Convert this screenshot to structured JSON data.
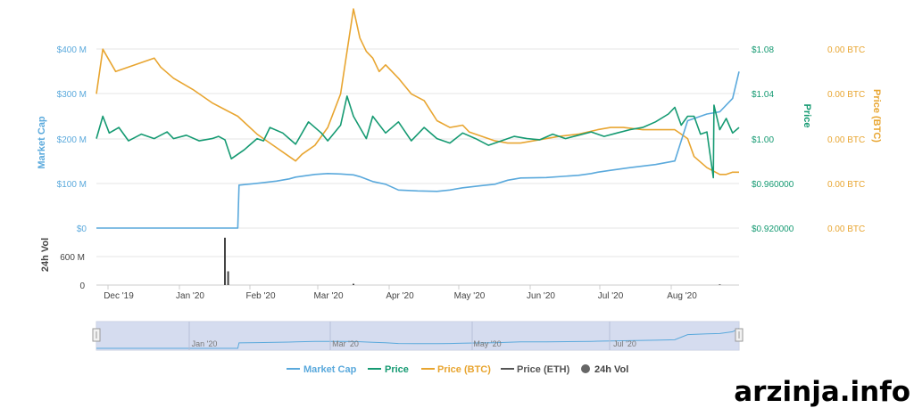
{
  "watermark": "arzinja.info",
  "colors": {
    "market_cap": "#5aa9dc",
    "price": "#159a72",
    "price_btc": "#e8a530",
    "price_eth": "#555555",
    "vol": "#444444",
    "grid": "#e6e6e6",
    "navigator_fill": "#cdd6ec",
    "navigator_border": "#9aa6c8"
  },
  "chart_data": {
    "type": "line",
    "x_tick_labels": [
      "Dec '19",
      "Jan '20",
      "Feb '20",
      "Mar '20",
      "Apr '20",
      "May '20",
      "Jun '20",
      "Jul '20",
      "Aug '20"
    ],
    "navigator_tick_labels": [
      "Jan '20",
      "Mar '20",
      "May '20",
      "Jul '20"
    ],
    "axes": {
      "market_cap": {
        "label": "Market Cap",
        "ticks": [
          "$0",
          "$100 M",
          "$200 M",
          "$300 M",
          "$400 M"
        ],
        "range": [
          0,
          500
        ]
      },
      "price": {
        "label": "Price",
        "ticks": [
          "$0.920000",
          "$0.960000",
          "$1.00",
          "$1.04",
          "$1.08"
        ],
        "range": [
          0.92,
          1.12
        ]
      },
      "price_btc": {
        "label": "Price (BTC)",
        "ticks": [
          "0.00 BTC",
          "0.00 BTC",
          "0.00 BTC",
          "0.00 BTC",
          "0.00 BTC"
        ]
      },
      "vol": {
        "label": "24h Vol",
        "ticks": [
          "0",
          "600 M"
        ],
        "range": [
          0,
          1200
        ]
      }
    },
    "legend": [
      "Market Cap",
      "Price",
      "Price (BTC)",
      "Price (ETH)",
      "24h Vol"
    ],
    "grid": true,
    "legend_position": "bottom",
    "series": [
      {
        "name": "Market Cap",
        "x": [
          0,
          0.0625,
          0.1,
          0.15,
          0.2,
          0.22,
          0.222,
          0.25,
          0.28,
          0.3,
          0.31,
          0.34,
          0.36,
          0.38,
          0.4,
          0.41,
          0.43,
          0.45,
          0.47,
          0.5,
          0.53,
          0.55,
          0.57,
          0.6,
          0.62,
          0.64,
          0.66,
          0.7,
          0.75,
          0.77,
          0.78,
          0.8,
          0.83,
          0.87,
          0.9,
          0.91,
          0.92,
          0.95,
          0.97,
          0.99,
          1.0
        ],
        "values": [
          0,
          0,
          0,
          0,
          0,
          0,
          96,
          100,
          105,
          110,
          114,
          120,
          122,
          121,
          119,
          115,
          104,
          98,
          85,
          83,
          82,
          85,
          90,
          95,
          98,
          107,
          112,
          113,
          118,
          122,
          125,
          129,
          135,
          142,
          150,
          195,
          240,
          255,
          260,
          290,
          350
        ]
      },
      {
        "name": "Price",
        "x": [
          0,
          0.01,
          0.02,
          0.035,
          0.05,
          0.07,
          0.09,
          0.11,
          0.12,
          0.14,
          0.16,
          0.18,
          0.19,
          0.2,
          0.21,
          0.23,
          0.24,
          0.25,
          0.26,
          0.27,
          0.29,
          0.3,
          0.31,
          0.33,
          0.35,
          0.36,
          0.38,
          0.39,
          0.4,
          0.41,
          0.42,
          0.43,
          0.45,
          0.47,
          0.49,
          0.51,
          0.53,
          0.55,
          0.57,
          0.59,
          0.61,
          0.63,
          0.65,
          0.67,
          0.69,
          0.71,
          0.73,
          0.75,
          0.77,
          0.79,
          0.81,
          0.83,
          0.85,
          0.87,
          0.89,
          0.9,
          0.91,
          0.92,
          0.93,
          0.94,
          0.95,
          0.96,
          0.961,
          0.97,
          0.98,
          0.99,
          1.0
        ],
        "values": [
          1.0,
          1.02,
          1.005,
          1.01,
          0.998,
          1.004,
          1.0,
          1.006,
          1.0,
          1.003,
          0.998,
          1.0,
          1.002,
          0.999,
          0.982,
          0.99,
          0.995,
          1.0,
          0.998,
          1.01,
          1.005,
          1.0,
          0.995,
          1.015,
          1.005,
          0.998,
          1.012,
          1.038,
          1.02,
          1.01,
          1.0,
          1.02,
          1.005,
          1.015,
          0.998,
          1.01,
          1.0,
          0.996,
          1.005,
          1.0,
          0.994,
          0.998,
          1.002,
          1.0,
          0.999,
          1.004,
          1.0,
          1.003,
          1.006,
          1.002,
          1.005,
          1.008,
          1.01,
          1.015,
          1.022,
          1.028,
          1.012,
          1.02,
          1.02,
          1.004,
          1.006,
          0.965,
          1.03,
          1.008,
          1.018,
          1.005,
          1.01
        ]
      },
      {
        "name": "Price (BTC)",
        "x": [
          0,
          0.01,
          0.02,
          0.03,
          0.05,
          0.07,
          0.09,
          0.1,
          0.12,
          0.15,
          0.18,
          0.2,
          0.22,
          0.25,
          0.28,
          0.3,
          0.31,
          0.32,
          0.34,
          0.36,
          0.38,
          0.4,
          0.41,
          0.42,
          0.43,
          0.44,
          0.45,
          0.47,
          0.49,
          0.51,
          0.53,
          0.55,
          0.57,
          0.58,
          0.6,
          0.62,
          0.64,
          0.66,
          0.68,
          0.7,
          0.72,
          0.75,
          0.78,
          0.8,
          0.82,
          0.85,
          0.87,
          0.9,
          0.92,
          0.93,
          0.95,
          0.97,
          0.98,
          0.99,
          1.0
        ],
        "values": [
          0.6,
          0.8,
          0.75,
          0.7,
          0.72,
          0.74,
          0.76,
          0.72,
          0.67,
          0.62,
          0.56,
          0.53,
          0.5,
          0.42,
          0.36,
          0.32,
          0.3,
          0.33,
          0.37,
          0.45,
          0.6,
          0.98,
          0.85,
          0.79,
          0.76,
          0.7,
          0.73,
          0.67,
          0.6,
          0.57,
          0.48,
          0.45,
          0.46,
          0.43,
          0.41,
          0.39,
          0.38,
          0.38,
          0.39,
          0.4,
          0.41,
          0.42,
          0.44,
          0.45,
          0.45,
          0.44,
          0.44,
          0.44,
          0.4,
          0.32,
          0.27,
          0.24,
          0.24,
          0.25,
          0.25
        ]
      }
    ],
    "volume_spikes": [
      {
        "x": 0.2,
        "value": 1100
      },
      {
        "x": 0.205,
        "value": 320
      },
      {
        "x": 0.4,
        "value": 30
      },
      {
        "x": 0.97,
        "value": 15
      }
    ]
  }
}
